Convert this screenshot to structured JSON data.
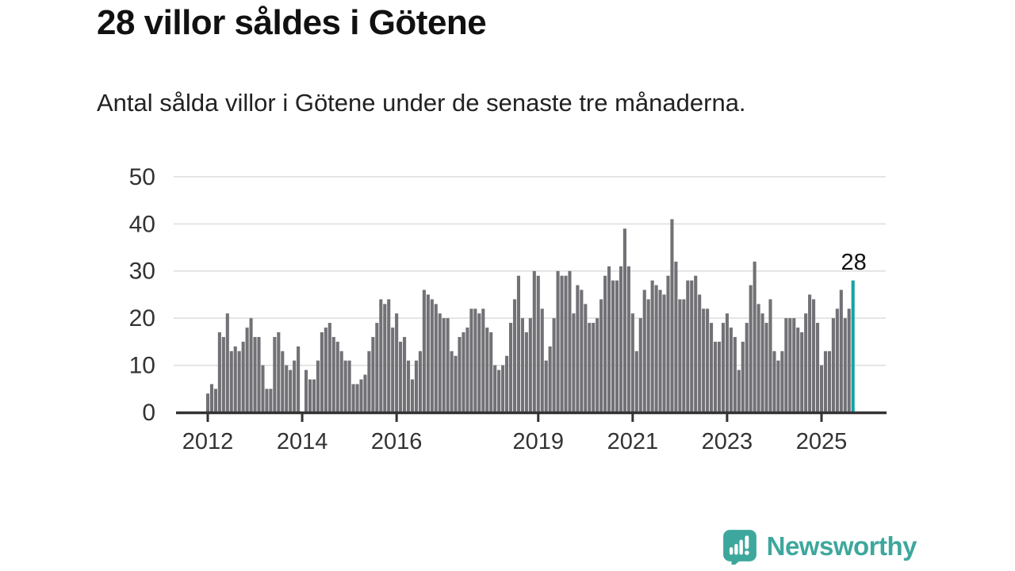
{
  "title": "28 villor såldes i Götene",
  "subtitle": "Antal sålda villor i Götene under de senaste tre månaderna.",
  "annotation": {
    "last_value_label": "28"
  },
  "logo": {
    "text": "Newsworthy",
    "icon": "speech-bubble-bar-chart"
  },
  "colors": {
    "bar": "#717176",
    "highlight": "#13A3A6",
    "grid": "#DDDDDD",
    "axis": "#333333",
    "tick_label": "#333333",
    "annotation": "#111111",
    "logo_teal": "#3EA79D"
  },
  "chart_data": {
    "type": "bar",
    "title": "28 villor såldes i Götene",
    "subtitle": "Antal sålda villor i Götene under de senaste tre månaderna.",
    "x_start": "2012-01",
    "x_interval": "month",
    "x_tick_years": [
      2012,
      2014,
      2016,
      2019,
      2021,
      2023,
      2025
    ],
    "y_ticks": [
      0,
      10,
      20,
      30,
      40,
      50
    ],
    "ylim": [
      0,
      50
    ],
    "grid": true,
    "legend_position": "none",
    "highlight_last_bar": true,
    "last_value": 28,
    "values": [
      4,
      6,
      5,
      17,
      16,
      21,
      13,
      14,
      13,
      15,
      18,
      20,
      16,
      16,
      10,
      5,
      5,
      16,
      17,
      13,
      10,
      9,
      11,
      14,
      0,
      9,
      7,
      7,
      11,
      17,
      18,
      19,
      16,
      15,
      13,
      11,
      11,
      6,
      6,
      7,
      8,
      13,
      16,
      19,
      24,
      23,
      24,
      18,
      21,
      15,
      16,
      11,
      7,
      11,
      13,
      26,
      25,
      24,
      23,
      21,
      20,
      20,
      13,
      12,
      16,
      17,
      18,
      22,
      22,
      21,
      22,
      18,
      17,
      10,
      9,
      10,
      12,
      19,
      24,
      29,
      20,
      17,
      20,
      30,
      29,
      22,
      11,
      14,
      20,
      30,
      29,
      29,
      30,
      21,
      27,
      26,
      23,
      19,
      19,
      20,
      24,
      29,
      31,
      28,
      28,
      31,
      39,
      31,
      21,
      13,
      20,
      26,
      24,
      28,
      27,
      26,
      25,
      29,
      41,
      32,
      24,
      24,
      28,
      28,
      29,
      25,
      22,
      22,
      19,
      15,
      15,
      19,
      21,
      18,
      16,
      9,
      15,
      19,
      27,
      32,
      23,
      21,
      19,
      24,
      13,
      11,
      13,
      20,
      20,
      20,
      18,
      17,
      21,
      25,
      24,
      19,
      10,
      13,
      13,
      20,
      22,
      26,
      20,
      22,
      28
    ]
  }
}
